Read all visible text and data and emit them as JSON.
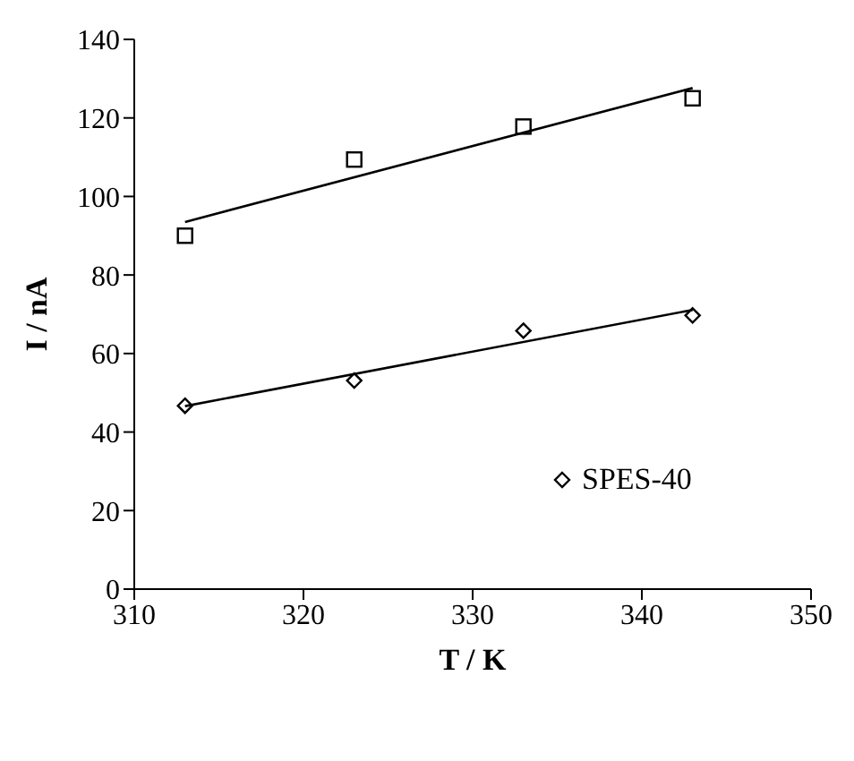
{
  "chart_data": {
    "type": "scatter",
    "xlabel": "T / K",
    "ylabel": "I / nA",
    "xlim": [
      310,
      350
    ],
    "xticks": [
      310,
      320,
      330,
      340,
      350
    ],
    "ylim": [
      0,
      140
    ],
    "yticks": [
      0,
      20,
      40,
      60,
      80,
      100,
      120,
      140
    ],
    "grid": false,
    "legend": "right",
    "series": [
      {
        "marker": "square",
        "color": "#000000",
        "x": [
          313,
          323,
          333,
          343
        ],
        "values": [
          90,
          109.4,
          117.8,
          125
        ]
      },
      {
        "marker": "diamond",
        "name": "SPES-40",
        "color": "#000000",
        "x": [
          313,
          323,
          333,
          343
        ],
        "values": [
          46.7,
          53.1,
          65.8,
          69.7
        ]
      },
      {
        "type": "line",
        "marker": "none",
        "color": "#000000",
        "x": [
          313,
          343
        ],
        "values": [
          93.5,
          127.6
        ]
      },
      {
        "type": "line",
        "marker": "none",
        "color": "#000000",
        "x": [
          313,
          343
        ],
        "values": [
          46.6,
          71.1
        ]
      }
    ]
  }
}
